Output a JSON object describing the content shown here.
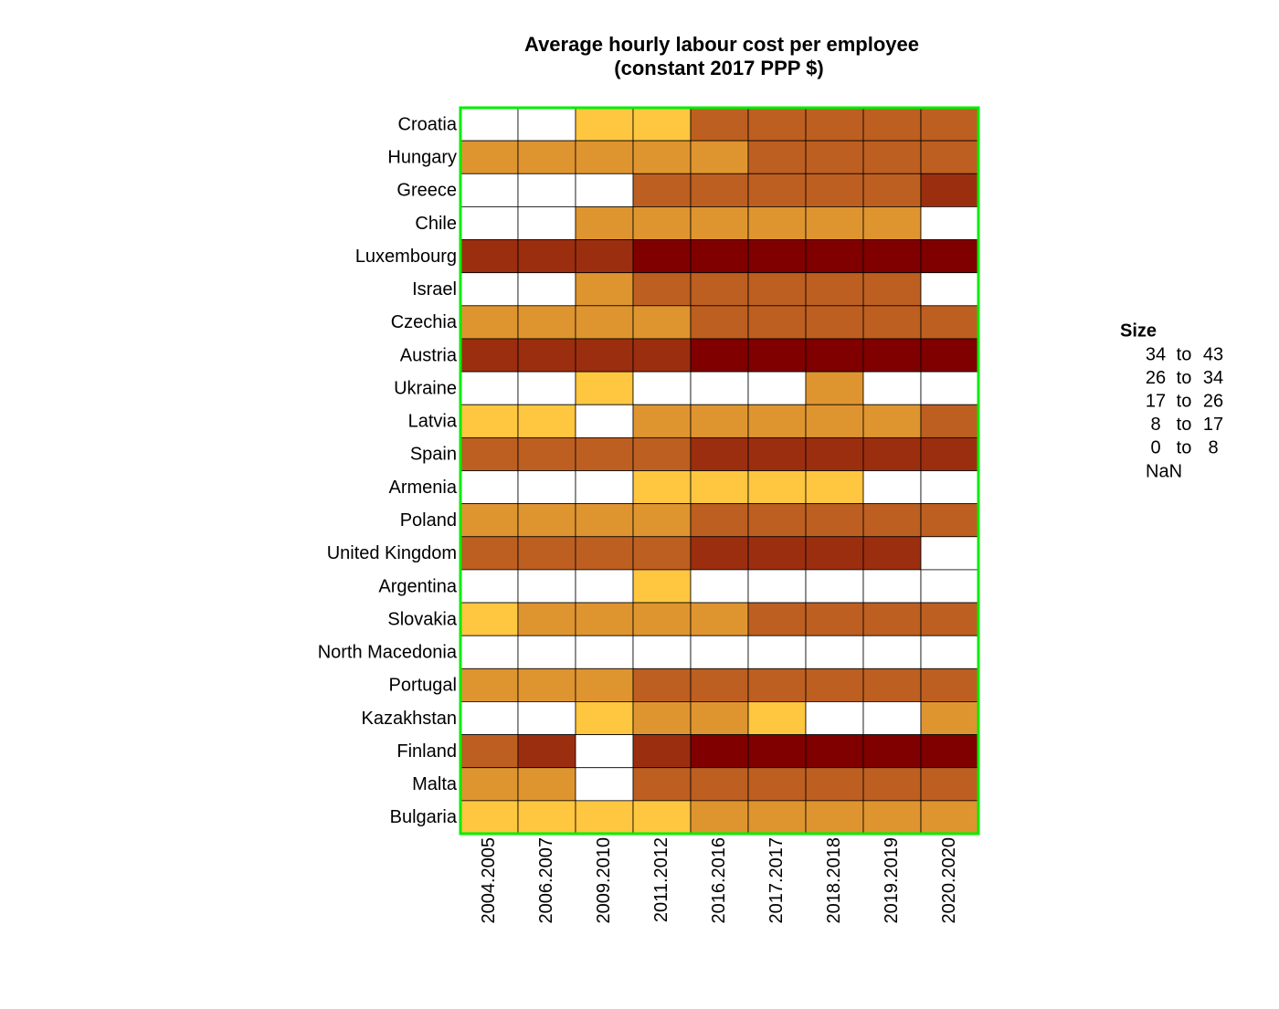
{
  "chart_data": {
    "type": "heatmap",
    "title": "Average hourly labour cost per employee",
    "subtitle": "(constant 2017 PPP $)",
    "x": [
      "2004.2005",
      "2006.2007",
      "2009.2010",
      "2011.2012",
      "2016.2016",
      "2017.2017",
      "2018.2018",
      "2019.2019",
      "2020.2020"
    ],
    "y": [
      "Croatia",
      "Hungary",
      "Greece",
      "Chile",
      "Luxembourg",
      "Israel",
      "Czechia",
      "Austria",
      "Ukraine",
      "Latvia",
      "Spain",
      "Armenia",
      "Poland",
      "United Kingdom",
      "Argentina",
      "Slovakia",
      "North Macedonia",
      "Portugal",
      "Kazakhstan",
      "Finland",
      "Malta",
      "Bulgaria"
    ],
    "values": [
      [
        null,
        null,
        4,
        4,
        21,
        21,
        21,
        21,
        21
      ],
      [
        12,
        12,
        12,
        12,
        12,
        21,
        21,
        21,
        21
      ],
      [
        null,
        null,
        null,
        21,
        21,
        21,
        21,
        21,
        30
      ],
      [
        null,
        null,
        12,
        12,
        12,
        12,
        12,
        12,
        null
      ],
      [
        30,
        30,
        30,
        38,
        38,
        38,
        38,
        38,
        38
      ],
      [
        null,
        null,
        12,
        21,
        21,
        21,
        21,
        21,
        null
      ],
      [
        12,
        12,
        12,
        12,
        21,
        21,
        21,
        21,
        21
      ],
      [
        30,
        30,
        30,
        30,
        38,
        38,
        38,
        38,
        38
      ],
      [
        null,
        null,
        4,
        null,
        null,
        null,
        12,
        null,
        null
      ],
      [
        4,
        4,
        null,
        12,
        12,
        12,
        12,
        12,
        21
      ],
      [
        21,
        21,
        21,
        21,
        30,
        30,
        30,
        30,
        30
      ],
      [
        null,
        null,
        null,
        4,
        4,
        4,
        4,
        null,
        null
      ],
      [
        12,
        12,
        12,
        12,
        21,
        21,
        21,
        21,
        21
      ],
      [
        21,
        21,
        21,
        21,
        30,
        30,
        30,
        30,
        null
      ],
      [
        null,
        null,
        null,
        4,
        null,
        null,
        null,
        null,
        null
      ],
      [
        4,
        12,
        12,
        12,
        12,
        21,
        21,
        21,
        21
      ],
      [
        null,
        null,
        null,
        null,
        null,
        null,
        null,
        null,
        null
      ],
      [
        12,
        12,
        12,
        21,
        21,
        21,
        21,
        21,
        21
      ],
      [
        null,
        null,
        4,
        12,
        12,
        4,
        null,
        null,
        12
      ],
      [
        21,
        30,
        null,
        30,
        38,
        38,
        38,
        38,
        38
      ],
      [
        12,
        12,
        null,
        21,
        21,
        21,
        21,
        21,
        21
      ],
      [
        4,
        4,
        4,
        4,
        12,
        12,
        12,
        12,
        12
      ]
    ],
    "legend_title": "Size",
    "bins": [
      0,
      8,
      17,
      26,
      34,
      43
    ],
    "range_word": "to",
    "colors": [
      "#ffc640",
      "#df952f",
      "#bd5f21",
      "#9c2e10",
      "#800000"
    ],
    "nan_label": "NaN",
    "nan_color": "#ffffff",
    "frame_color": "#00ee00"
  }
}
